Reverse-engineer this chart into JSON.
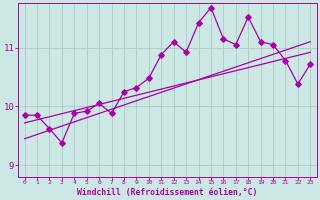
{
  "xlabel": "Windchill (Refroidissement éolien,°C)",
  "background_color": "#cce8e4",
  "line_color": "#aa00aa",
  "grid_color": "#b0c8c4",
  "xlim": [
    -0.5,
    23.5
  ],
  "ylim": [
    8.8,
    11.75
  ],
  "yticks": [
    9,
    10,
    11
  ],
  "xticks": [
    0,
    1,
    2,
    3,
    4,
    5,
    6,
    7,
    8,
    9,
    10,
    11,
    12,
    13,
    14,
    15,
    16,
    17,
    18,
    19,
    20,
    21,
    22,
    23
  ],
  "data_x": [
    0,
    1,
    2,
    3,
    4,
    5,
    6,
    7,
    8,
    9,
    10,
    11,
    12,
    13,
    14,
    15,
    16,
    17,
    18,
    19,
    20,
    21,
    22,
    23
  ],
  "data_y": [
    9.85,
    9.85,
    9.62,
    9.38,
    9.88,
    9.92,
    10.05,
    9.88,
    10.25,
    10.32,
    10.48,
    10.88,
    11.1,
    10.92,
    11.42,
    11.68,
    11.15,
    11.05,
    11.52,
    11.1,
    11.05,
    10.78,
    10.38,
    10.72
  ],
  "line1_x": [
    0,
    23
  ],
  "line1_y": [
    9.72,
    10.92
  ],
  "line2_x": [
    0,
    23
  ],
  "line2_y": [
    9.45,
    11.1
  ],
  "marker_size": 2.8,
  "line_width": 0.9
}
